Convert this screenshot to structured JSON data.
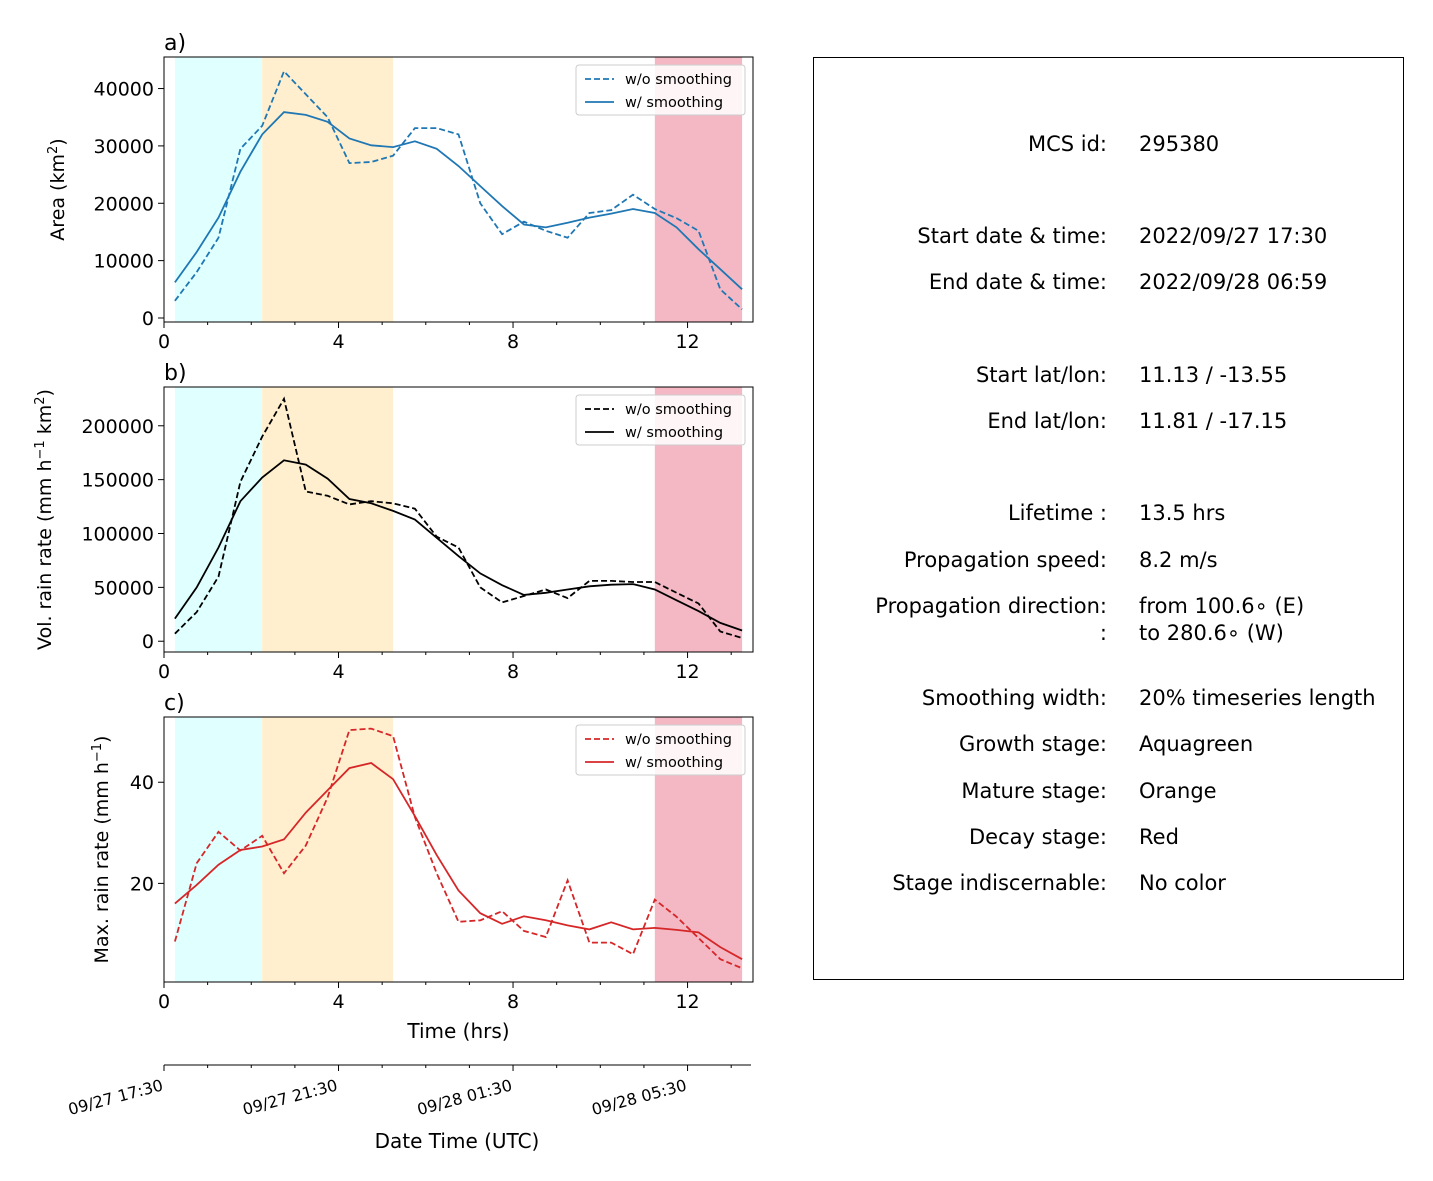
{
  "chart_data": [
    {
      "type": "line",
      "panel_label": "a)",
      "ylabel": "Area  (km",
      "ylabel_sup": "2",
      "ylabel_end": ")",
      "xlim": [
        0,
        13.5
      ],
      "ylim": [
        -700,
        45500
      ],
      "xticks": [
        0,
        4,
        8,
        12
      ],
      "xtick_labels": [
        "0",
        "4",
        "8",
        "12"
      ],
      "yticks": [
        0,
        10000,
        20000,
        30000,
        40000
      ],
      "ytick_labels": [
        "0",
        "10000",
        "20000",
        "30000",
        "40000"
      ],
      "legend_position": "top-right",
      "color": "#1f77b4",
      "x": [
        0.25,
        0.75,
        1.25,
        1.75,
        2.25,
        2.75,
        3.25,
        3.75,
        4.25,
        4.75,
        5.25,
        5.75,
        6.25,
        6.75,
        7.25,
        7.75,
        8.25,
        8.75,
        9.25,
        9.75,
        10.25,
        10.75,
        11.25,
        11.75,
        12.25,
        12.75,
        13.25
      ],
      "series": [
        {
          "name": "w/o smoothing",
          "dash": true,
          "values": [
            3000,
            8000,
            14000,
            29500,
            33500,
            43000,
            39000,
            35000,
            27000,
            27200,
            28300,
            33100,
            33100,
            32000,
            20000,
            14600,
            16800,
            15200,
            14000,
            18300,
            18800,
            21500,
            19000,
            17400,
            15200,
            5000,
            1500
          ]
        },
        {
          "name": "w/ smoothing",
          "dash": false,
          "values": [
            6200,
            11500,
            17500,
            25500,
            32000,
            35900,
            35400,
            34200,
            31300,
            30100,
            29800,
            30800,
            29500,
            26500,
            23000,
            19500,
            16300,
            15800,
            16600,
            17500,
            18200,
            19000,
            18300,
            15800,
            12000,
            8500,
            5000
          ]
        }
      ],
      "stage_spans": [
        {
          "stage": "growth",
          "from": 0.25,
          "to": 2.25,
          "color": "#e0ffff"
        },
        {
          "stage": "mature",
          "from": 2.25,
          "to": 5.25,
          "color": "#ffefcf"
        },
        {
          "stage": "decay",
          "from": 11.25,
          "to": 13.25,
          "color": "#f3b8c4"
        }
      ]
    },
    {
      "type": "line",
      "panel_label": "b)",
      "ylabel": "Vol. rain rate (mm h",
      "ylabel_sup": "−1",
      "ylabel_mid": " km",
      "ylabel_sup2": "2",
      "ylabel_end": ")",
      "xlim": [
        0,
        13.5
      ],
      "ylim": [
        -10000,
        236000
      ],
      "xticks": [
        0,
        4,
        8,
        12
      ],
      "xtick_labels": [
        "0",
        "4",
        "8",
        "12"
      ],
      "yticks": [
        0,
        50000,
        100000,
        150000,
        200000
      ],
      "ytick_labels": [
        "0",
        "50000",
        "100000",
        "150000",
        "200000"
      ],
      "legend_position": "top-right",
      "color": "#000000",
      "x": [
        0.25,
        0.75,
        1.25,
        1.75,
        2.25,
        2.75,
        3.25,
        3.75,
        4.25,
        4.75,
        5.25,
        5.75,
        6.25,
        6.75,
        7.25,
        7.75,
        8.25,
        8.75,
        9.25,
        9.75,
        10.25,
        10.75,
        11.25,
        11.75,
        12.25,
        12.75,
        13.25
      ],
      "series": [
        {
          "name": "w/o smoothing",
          "dash": true,
          "values": [
            7000,
            27000,
            60000,
            148000,
            190000,
            225000,
            139000,
            135000,
            127000,
            130000,
            128000,
            123000,
            97000,
            87000,
            50000,
            36000,
            42000,
            48000,
            40000,
            56000,
            56000,
            55000,
            55000,
            45000,
            35000,
            9000,
            3000
          ]
        },
        {
          "name": "w/ smoothing",
          "dash": false,
          "values": [
            21000,
            50000,
            87000,
            130000,
            152000,
            168000,
            164000,
            151000,
            132000,
            128000,
            121000,
            113000,
            96000,
            79000,
            63000,
            52000,
            43000,
            45000,
            48000,
            51000,
            52500,
            53000,
            48000,
            38000,
            28000,
            17000,
            10000
          ]
        }
      ],
      "stage_spans": [
        {
          "stage": "growth",
          "from": 0.25,
          "to": 2.25,
          "color": "#e0ffff"
        },
        {
          "stage": "mature",
          "from": 2.25,
          "to": 5.25,
          "color": "#ffefcf"
        },
        {
          "stage": "decay",
          "from": 11.25,
          "to": 13.25,
          "color": "#f3b8c4"
        }
      ]
    },
    {
      "type": "line",
      "panel_label": "c)",
      "ylabel": "Max. rain rate  (mm h",
      "ylabel_sup": "−1",
      "ylabel_end": ")",
      "xlim": [
        0,
        13.5
      ],
      "ylim": [
        0.5,
        52.9
      ],
      "xticks": [
        0,
        4,
        8,
        12
      ],
      "xtick_labels": [
        "0",
        "4",
        "8",
        "12"
      ],
      "yticks": [
        20,
        40
      ],
      "ytick_labels": [
        "20",
        "40"
      ],
      "xlabel": "Time (hrs)",
      "legend_position": "top-right",
      "color": "#d62728",
      "x": [
        0.25,
        0.75,
        1.25,
        1.75,
        2.25,
        2.75,
        3.25,
        3.75,
        4.25,
        4.75,
        5.25,
        5.75,
        6.25,
        6.75,
        7.25,
        7.75,
        8.25,
        8.75,
        9.25,
        9.75,
        10.25,
        10.75,
        11.25,
        11.75,
        12.25,
        12.75,
        13.25
      ],
      "series": [
        {
          "name": "w/o smoothing",
          "dash": true,
          "values": [
            8.5,
            24,
            30.2,
            26.5,
            29.4,
            22,
            27.5,
            37,
            50.3,
            50.6,
            49.1,
            33.1,
            22,
            12.4,
            12.7,
            14.5,
            10.6,
            9.4,
            20.6,
            8.3,
            8.3,
            6,
            16.8,
            13.4,
            9.2,
            5,
            3.2
          ]
        },
        {
          "name": "w/ smoothing",
          "dash": false,
          "values": [
            16,
            19.7,
            23.7,
            26.6,
            27.3,
            28.7,
            34,
            38.4,
            42.8,
            43.8,
            40.6,
            33.3,
            25.6,
            18.6,
            14.1,
            12,
            13.5,
            12.7,
            11.7,
            10.9,
            12.3,
            10.9,
            11.2,
            10.8,
            10.3,
            7.4,
            5
          ]
        }
      ],
      "stage_spans": [
        {
          "stage": "growth",
          "from": 0.25,
          "to": 2.25,
          "color": "#e0ffff"
        },
        {
          "stage": "mature",
          "from": 2.25,
          "to": 5.25,
          "color": "#ffefcf"
        },
        {
          "stage": "decay",
          "from": 11.25,
          "to": 13.25,
          "color": "#f3b8c4"
        }
      ]
    }
  ],
  "date_axis": {
    "xlabel": "Date Time (UTC)",
    "ticks": [
      0,
      4,
      8,
      12
    ],
    "tick_labels": [
      "09/27 17:30",
      "09/27 21:30",
      "09/28 01:30",
      "09/28 05:30"
    ]
  },
  "info_panel": {
    "rows": [
      {
        "label": "MCS id:",
        "value": "295380"
      },
      {
        "label": "Start date & time:",
        "value": "2022/09/27 17:30"
      },
      {
        "label": "End date & time:",
        "value": "2022/09/28 06:59"
      },
      {
        "label": "Start lat/lon:",
        "value": "11.13 / -13.55"
      },
      {
        "label": "End lat/lon:",
        "value": "11.81 / -17.15"
      },
      {
        "label": "Lifetime :",
        "value": "13.5 hrs"
      },
      {
        "label": "Propagation speed:",
        "value": "8.2 m/s"
      },
      {
        "label": "Propagation direction:",
        "value": "from 100.6∘ (E)"
      },
      {
        "label": ":",
        "value": "to   280.6∘ (W)"
      },
      {
        "label": "Smoothing width:",
        "value": "20% timeseries length"
      },
      {
        "label": "Growth stage:",
        "value": "Aquagreen"
      },
      {
        "label": "Mature stage:",
        "value": "Orange"
      },
      {
        "label": "Decay stage:",
        "value": "Red"
      },
      {
        "label": "Stage indiscernable:",
        "value": "No color"
      }
    ]
  }
}
